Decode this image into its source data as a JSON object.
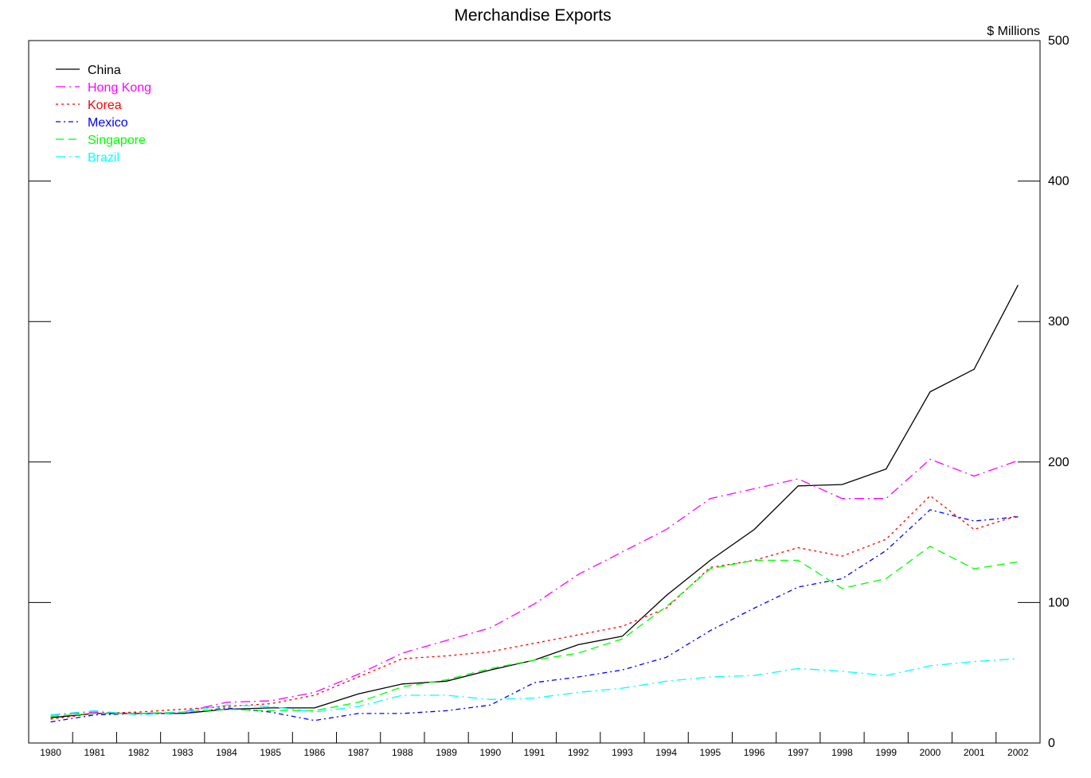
{
  "chart_data": {
    "type": "line",
    "title": "Merchandise Exports",
    "ylabel": "$ Millions",
    "xlabel": "",
    "ylim": [
      0,
      500
    ],
    "yticks": [
      0,
      100,
      200,
      300,
      400,
      500
    ],
    "legend_position": "top-left",
    "grid": false,
    "x": [
      "1980",
      "1981",
      "1982",
      "1983",
      "1984",
      "1985",
      "1986",
      "1987",
      "1988",
      "1989",
      "1990",
      "1991",
      "1992",
      "1993",
      "1994",
      "1995",
      "1996",
      "1997",
      "1998",
      "1999",
      "2000",
      "2001",
      "2002"
    ],
    "series": [
      {
        "name": "China",
        "color": "#000000",
        "dash": "solid",
        "values": [
          18,
          21,
          21,
          21,
          24,
          25,
          25,
          35,
          42,
          44,
          52,
          59,
          70,
          76,
          105,
          130,
          152,
          183,
          184,
          195,
          250,
          266,
          326
        ]
      },
      {
        "name": "Hong Kong",
        "color": "#ff00ff",
        "dash": "dashdot",
        "values": [
          20,
          22,
          21,
          22,
          29,
          30,
          36,
          49,
          64,
          73,
          82,
          99,
          120,
          136,
          152,
          174,
          181,
          188,
          174,
          174,
          202,
          190,
          201
        ]
      },
      {
        "name": "Korea",
        "color": "#ff0000",
        "dash": "dot",
        "values": [
          17,
          21,
          22,
          24,
          26,
          28,
          34,
          47,
          60,
          62,
          65,
          71,
          77,
          83,
          96,
          125,
          130,
          139,
          133,
          145,
          176,
          152,
          162
        ]
      },
      {
        "name": "Mexico",
        "color": "#0000ff",
        "dash": "dash-dot-short",
        "values": [
          15,
          20,
          21,
          21,
          25,
          22,
          16,
          21,
          21,
          23,
          27,
          43,
          47,
          52,
          61,
          80,
          96,
          111,
          117,
          137,
          166,
          158,
          161
        ]
      },
      {
        "name": "Singapore",
        "color": "#00ff00",
        "dash": "dash",
        "values": [
          19,
          21,
          21,
          22,
          24,
          23,
          23,
          29,
          40,
          45,
          53,
          59,
          64,
          74,
          97,
          124,
          130,
          130,
          110,
          117,
          140,
          124,
          129
        ]
      },
      {
        "name": "Brazil",
        "color": "#00ffff",
        "dash": "dashdot",
        "values": [
          20,
          23,
          20,
          22,
          27,
          26,
          22,
          26,
          34,
          34,
          31,
          32,
          36,
          39,
          44,
          47,
          48,
          53,
          51,
          48,
          55,
          58,
          60
        ]
      }
    ]
  }
}
